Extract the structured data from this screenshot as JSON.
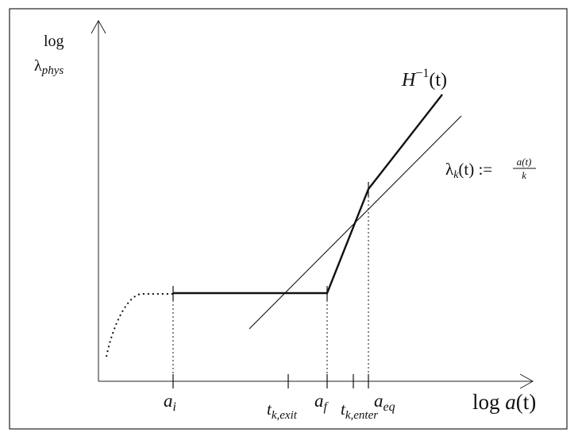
{
  "y_axis": {
    "label_line1": "log",
    "label_line2_base": "λ",
    "label_line2_sub": "phys"
  },
  "x_axis": {
    "label_prefix": "log ",
    "label_var": "a",
    "label_paren": "(t)"
  },
  "curve_H": {
    "base": "H",
    "sup": "−1",
    "paren": "(t)"
  },
  "line_lambda": {
    "base": "λ",
    "sub": "k",
    "arg": "(t) := ",
    "frac_num": "a(t)",
    "frac_den": "k"
  },
  "ticks": {
    "a_i": {
      "base": "a",
      "sub": "i"
    },
    "t_exit": {
      "base": "t",
      "sub": "k,exit"
    },
    "a_f": {
      "base": "a",
      "sub": "f"
    },
    "t_enter": {
      "base": "t",
      "sub": "k,enter"
    },
    "a_eq": {
      "base": "a",
      "sub": "eq"
    }
  },
  "colors": {
    "ink": "#111111",
    "border": "#222222",
    "background": "#ffffff"
  }
}
